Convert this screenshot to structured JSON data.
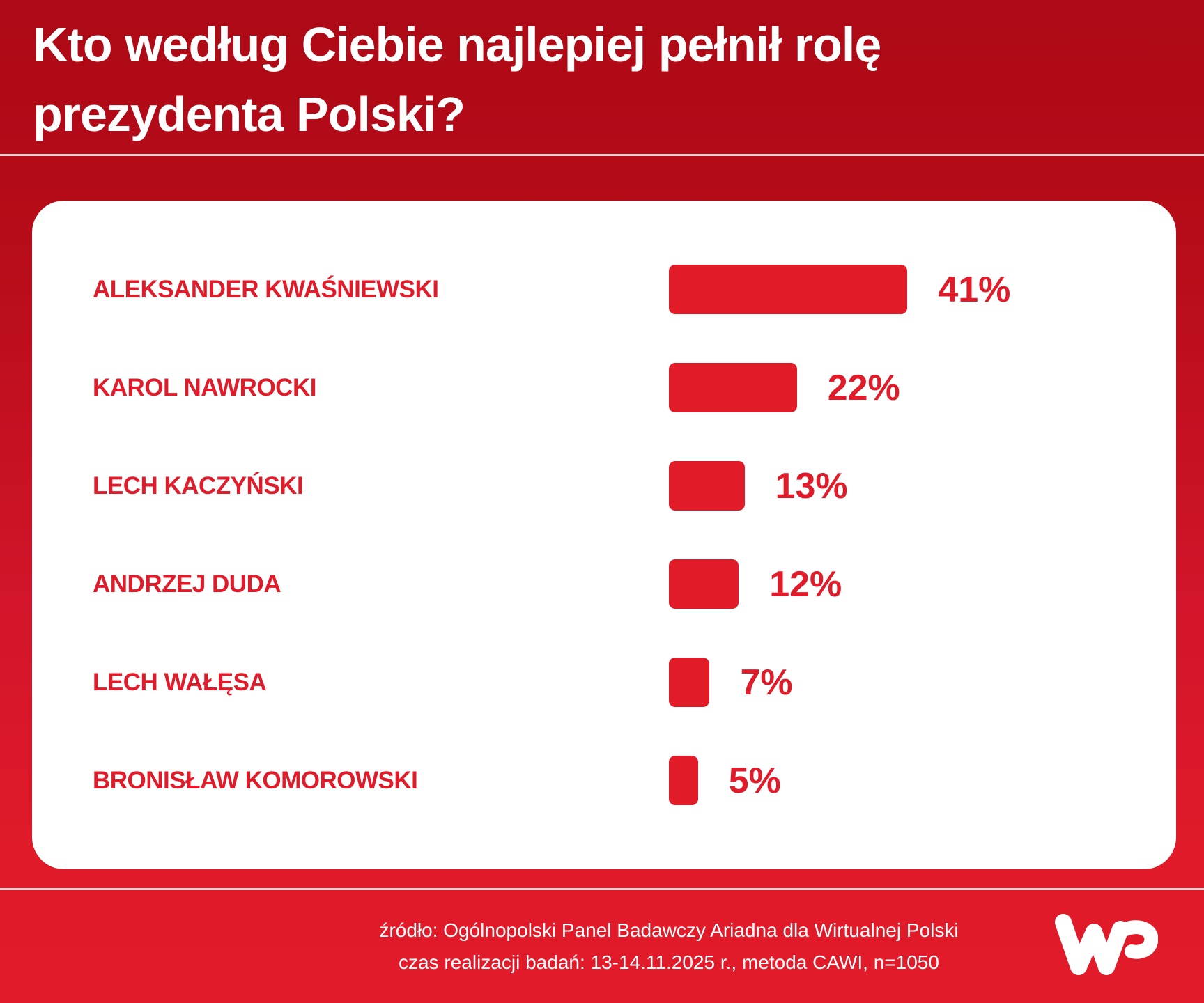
{
  "header": {
    "title_line1": "Kto według Ciebie najlepiej pełnił rolę",
    "title_line2": "prezydenta Polski?"
  },
  "colors": {
    "background_top": "#ad0916",
    "background_bottom": "#e21b2a",
    "bar": "#e21b28",
    "label": "#e01b2a",
    "card": "#ffffff"
  },
  "rows": [
    {
      "label": "ALEKSANDER KWAŚNIEWSKI",
      "value": 41,
      "value_label": "41%"
    },
    {
      "label": "KAROL NAWROCKI",
      "value": 22,
      "value_label": "22%"
    },
    {
      "label": "LECH KACZYŃSKI",
      "value": 13,
      "value_label": "13%"
    },
    {
      "label": "ANDRZEJ DUDA",
      "value": 12,
      "value_label": "12%"
    },
    {
      "label": "LECH WAŁĘSA",
      "value": 7,
      "value_label": "7%"
    },
    {
      "label": "BRONISŁAW KOMOROWSKI",
      "value": 5,
      "value_label": "5%"
    }
  ],
  "footer": {
    "source": "źródło: Ogólnopolski Panel Badawczy Ariadna dla Wirtualnej Polski",
    "method": "czas realizacji badań: 13-14.11.2025 r., metoda CAWI, n=1050",
    "logo": "wp-logo"
  },
  "chart_data": {
    "type": "bar",
    "orientation": "horizontal",
    "title": "Kto według Ciebie najlepiej pełnił rolę prezydenta Polski?",
    "categories": [
      "ALEKSANDER KWAŚNIEWSKI",
      "KAROL NAWROCKI",
      "LECH KACZYŃSKI",
      "ANDRZEJ DUDA",
      "LECH WAŁĘSA",
      "BRONISŁAW KOMOROWSKI"
    ],
    "values": [
      41,
      22,
      13,
      12,
      7,
      5
    ],
    "unit": "%",
    "xlabel": "",
    "ylabel": "",
    "grid": false,
    "legend": null,
    "annotations": [
      "źródło: Ogólnopolski Panel Badawczy Ariadna dla Wirtualnej Polski",
      "czas realizacji badań: 13-14.11.2025 r., metoda CAWI, n=1050"
    ]
  }
}
